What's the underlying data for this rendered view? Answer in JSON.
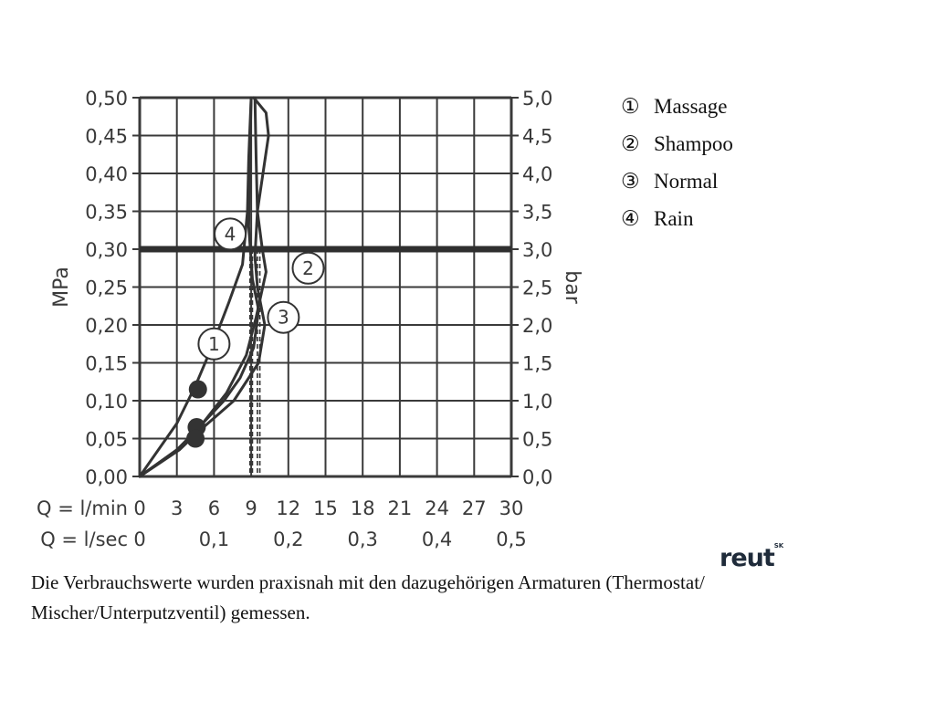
{
  "chart_data": {
    "type": "line",
    "title": "",
    "x_axis_rows": [
      {
        "label": "Q = l/min",
        "ticks": [
          "0",
          "3",
          "6",
          "9",
          "12",
          "15",
          "18",
          "21",
          "24",
          "27",
          "30"
        ]
      },
      {
        "label": "Q = l/sec",
        "ticks": [
          "0",
          "0,1",
          "0,2",
          "0,3",
          "0,4",
          "0,5"
        ]
      }
    ],
    "y_left": {
      "label": "MPa",
      "ticks": [
        "0,00",
        "0,05",
        "0,10",
        "0,15",
        "0,20",
        "0,25",
        "0,30",
        "0,35",
        "0,40",
        "0,45",
        "0,50"
      ]
    },
    "y_right": {
      "label": "bar",
      "ticks": [
        "0,0",
        "0,5",
        "1,0",
        "1,5",
        "2,0",
        "2,5",
        "3,0",
        "3,5",
        "4,0",
        "4,5",
        "5,0"
      ]
    },
    "xlim": [
      0,
      30
    ],
    "ylim": [
      0,
      0.5
    ],
    "grid": true,
    "reference_line": {
      "y": 0.3,
      "color": "#2f2f2f"
    },
    "series": [
      {
        "name": "Massage",
        "marker": "1",
        "x": [
          0,
          3.0,
          4.5,
          5.8,
          7.2,
          8.3,
          8.7,
          8.8,
          8.9,
          9.0
        ],
        "y": [
          0,
          0.07,
          0.12,
          0.17,
          0.23,
          0.28,
          0.35,
          0.42,
          0.46,
          0.5
        ],
        "operating_point": {
          "x": 8.9,
          "y": 0.3
        }
      },
      {
        "name": "Shampoo",
        "marker": "2",
        "x": [
          0,
          3.0,
          4.6,
          7.0,
          8.6,
          9.4,
          10.2,
          9.9,
          9.5,
          9.4,
          9.3
        ],
        "y": [
          0,
          0.035,
          0.06,
          0.11,
          0.16,
          0.21,
          0.27,
          0.3,
          0.35,
          0.42,
          0.5
        ],
        "operating_point": {
          "x": 9.7,
          "y": 0.3
        }
      },
      {
        "name": "Normal",
        "marker": "3",
        "x": [
          0,
          3.2,
          4.8,
          7.6,
          9.6,
          10.1,
          9.5,
          9.3,
          9.5,
          10.4,
          10.2,
          9.2
        ],
        "y": [
          0,
          0.035,
          0.06,
          0.1,
          0.15,
          0.2,
          0.25,
          0.29,
          0.35,
          0.45,
          0.48,
          0.5
        ],
        "operating_point": {
          "x": 9.5,
          "y": 0.3
        }
      },
      {
        "name": "Rain",
        "marker": "4",
        "x": [
          0,
          3.0,
          4.5,
          6.8,
          8.1,
          9.2,
          9.6,
          9.1,
          8.8,
          8.9,
          9.0
        ],
        "y": [
          0,
          0.035,
          0.06,
          0.1,
          0.13,
          0.17,
          0.22,
          0.26,
          0.33,
          0.43,
          0.5
        ],
        "operating_point": {
          "x": 9.1,
          "y": 0.3
        }
      }
    ],
    "dots": [
      {
        "x": 4.7,
        "y": 0.115
      },
      {
        "x": 4.6,
        "y": 0.065
      },
      {
        "x": 4.5,
        "y": 0.05
      }
    ],
    "curve_markers": [
      {
        "label": "1",
        "x": 6.0,
        "y": 0.175
      },
      {
        "label": "2",
        "x": 13.6,
        "y": 0.275
      },
      {
        "label": "3",
        "x": 11.6,
        "y": 0.21
      },
      {
        "label": "4",
        "x": 7.3,
        "y": 0.32
      }
    ]
  },
  "legend": [
    {
      "symbol": "①",
      "label": "Massage"
    },
    {
      "symbol": "②",
      "label": "Shampoo"
    },
    {
      "symbol": "③",
      "label": "Normal"
    },
    {
      "symbol": "④",
      "label": "Rain"
    }
  ],
  "logo": {
    "text": "reut",
    "sup": "SK"
  },
  "footnote": "Die Verbrauchswerte wurden praxisnah mit den dazugehörigen Armaturen (Thermostat/ Mischer/Unterputzventil) gemessen.",
  "colors": {
    "ink": "#333333",
    "grid": "#3a3a3a",
    "text": "#111111"
  }
}
